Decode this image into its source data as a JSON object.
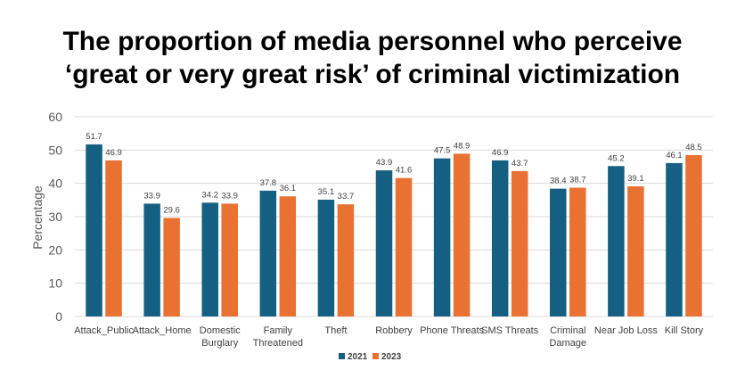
{
  "chart_data": {
    "type": "bar",
    "title_lines": [
      "The proportion of media personnel who perceive",
      "‘great or very great risk’ of criminal victimization"
    ],
    "xlabel": "",
    "ylabel": "Percentage",
    "ylim": [
      0,
      60
    ],
    "yticks": [
      0,
      10,
      20,
      30,
      40,
      50,
      60
    ],
    "grid": true,
    "legend_position": "bottom",
    "categories": [
      [
        "Attack_Public"
      ],
      [
        "Attack_Home"
      ],
      [
        "Domestic",
        "Burglary"
      ],
      [
        "Family",
        "Threatened"
      ],
      [
        "Theft"
      ],
      [
        "Robbery"
      ],
      [
        "Phone Threats"
      ],
      [
        "SMS Threats"
      ],
      [
        "Criminal",
        "Damage"
      ],
      [
        "Near Job Loss"
      ],
      [
        "Kill Story"
      ]
    ],
    "series": [
      {
        "name": "2021",
        "color": "#156082",
        "values": [
          51.7,
          33.9,
          34.2,
          37.8,
          35.1,
          43.9,
          47.5,
          46.9,
          38.4,
          45.2,
          46.1
        ]
      },
      {
        "name": "2023",
        "color": "#E97132",
        "values": [
          46.9,
          29.6,
          33.9,
          36.1,
          33.7,
          41.6,
          48.9,
          43.7,
          38.7,
          39.1,
          48.5
        ]
      }
    ]
  }
}
